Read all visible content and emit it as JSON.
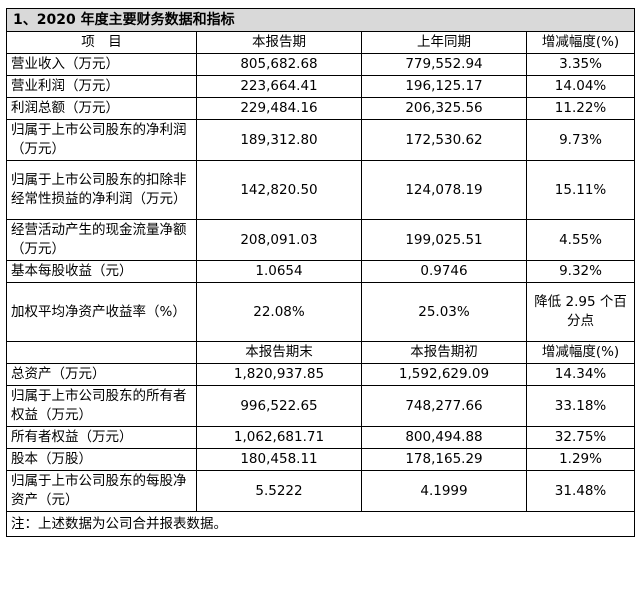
{
  "table": {
    "title": "1、2020 年度主要财务数据和指标",
    "header1": [
      "项　目",
      "本报告期",
      "上年同期",
      "增减幅度(%)"
    ],
    "rows1": [
      [
        "营业收入（万元）",
        "805,682.68",
        "779,552.94",
        "3.35%"
      ],
      [
        "营业利润（万元）",
        "223,664.41",
        "196,125.17",
        "14.04%"
      ],
      [
        "利润总额（万元）",
        "229,484.16",
        "206,325.56",
        "11.22%"
      ],
      [
        "归属于上市公司股东的净利润（万元）",
        "189,312.80",
        "172,530.62",
        "9.73%"
      ],
      [
        "归属于上市公司股东的扣除非经常性损益的净利润（万元）",
        "142,820.50",
        "124,078.19",
        "15.11%"
      ],
      [
        "经营活动产生的现金流量净额（万元）",
        "208,091.03",
        "199,025.51",
        "4.55%"
      ],
      [
        "基本每股收益（元）",
        "1.0654",
        "0.9746",
        "9.32%"
      ],
      [
        "加权平均净资产收益率（%）",
        "22.08%",
        "25.03%",
        "降低 2.95 个百分点"
      ]
    ],
    "header2": [
      "",
      "本报告期末",
      "本报告期初",
      "增减幅度(%)"
    ],
    "rows2": [
      [
        "总资产（万元）",
        "1,820,937.85",
        "1,592,629.09",
        "14.34%"
      ],
      [
        "归属于上市公司股东的所有者权益（万元）",
        "996,522.65",
        "748,277.66",
        "33.18%"
      ],
      [
        "所有者权益（万元）",
        "1,062,681.71",
        "800,494.88",
        "32.75%"
      ],
      [
        "股本（万股）",
        "180,458.11",
        "178,165.29",
        "1.29%"
      ],
      [
        "归属于上市公司股东的每股净资产（元）",
        "5.5222",
        "4.1999",
        "31.48%"
      ]
    ],
    "note": "注：上述数据为公司合并报表数据。"
  }
}
